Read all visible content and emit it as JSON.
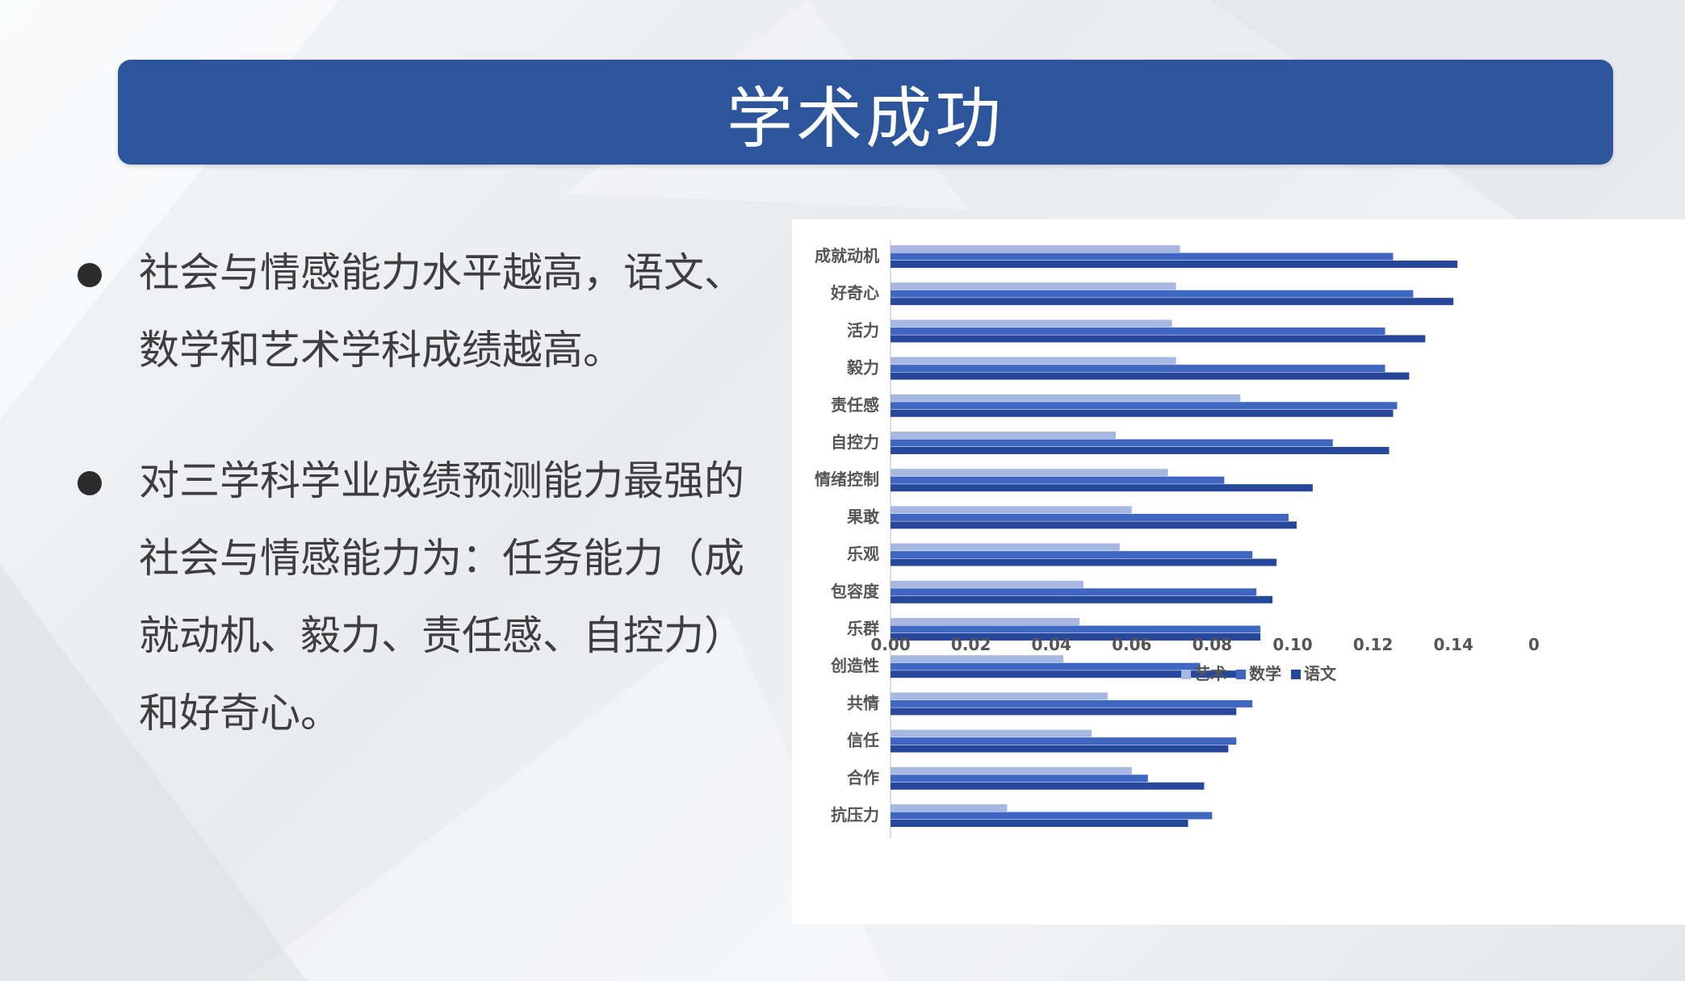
{
  "title": "学术成功",
  "bullets": [
    "社会与情感能力水平越高，语文、数学和艺术学科成绩越高。",
    "对三学科学业成绩预测能力最强的社会与情感能力为：任务能力（成就动机、毅力、责任感、自控力）和好奇心。"
  ],
  "colors": {
    "title_bg": "#2c559c",
    "art": "#a6b8e2",
    "math": "#3f66c0",
    "chinese": "#27479a"
  },
  "chart_data": {
    "type": "bar",
    "orientation": "horizontal",
    "categories": [
      "成就动机",
      "好奇心",
      "活力",
      "毅力",
      "责任感",
      "自控力",
      "情绪控制",
      "果敢",
      "乐观",
      "包容度",
      "乐群",
      "创造性",
      "共情",
      "信任",
      "合作",
      "抗压力"
    ],
    "series": [
      {
        "name": "艺术",
        "values": [
          0.072,
          0.071,
          0.07,
          0.071,
          0.087,
          0.056,
          0.069,
          0.06,
          0.057,
          0.048,
          0.047,
          0.043,
          0.054,
          0.05,
          0.06,
          0.029
        ]
      },
      {
        "name": "数学",
        "values": [
          0.125,
          0.13,
          0.123,
          0.123,
          0.126,
          0.11,
          0.083,
          0.099,
          0.09,
          0.091,
          0.092,
          0.077,
          0.09,
          0.086,
          0.064,
          0.08
        ]
      },
      {
        "name": "语文",
        "values": [
          0.141,
          0.14,
          0.133,
          0.129,
          0.125,
          0.124,
          0.105,
          0.101,
          0.096,
          0.095,
          0.092,
          0.088,
          0.086,
          0.084,
          0.078,
          0.074
        ]
      }
    ],
    "x_ticks": [
      "0.00",
      "0.02",
      "0.04",
      "0.06",
      "0.08",
      "0.10",
      "0.12",
      "0.14",
      "0"
    ],
    "xlim": [
      0,
      0.16
    ],
    "legend_position": "bottom"
  }
}
